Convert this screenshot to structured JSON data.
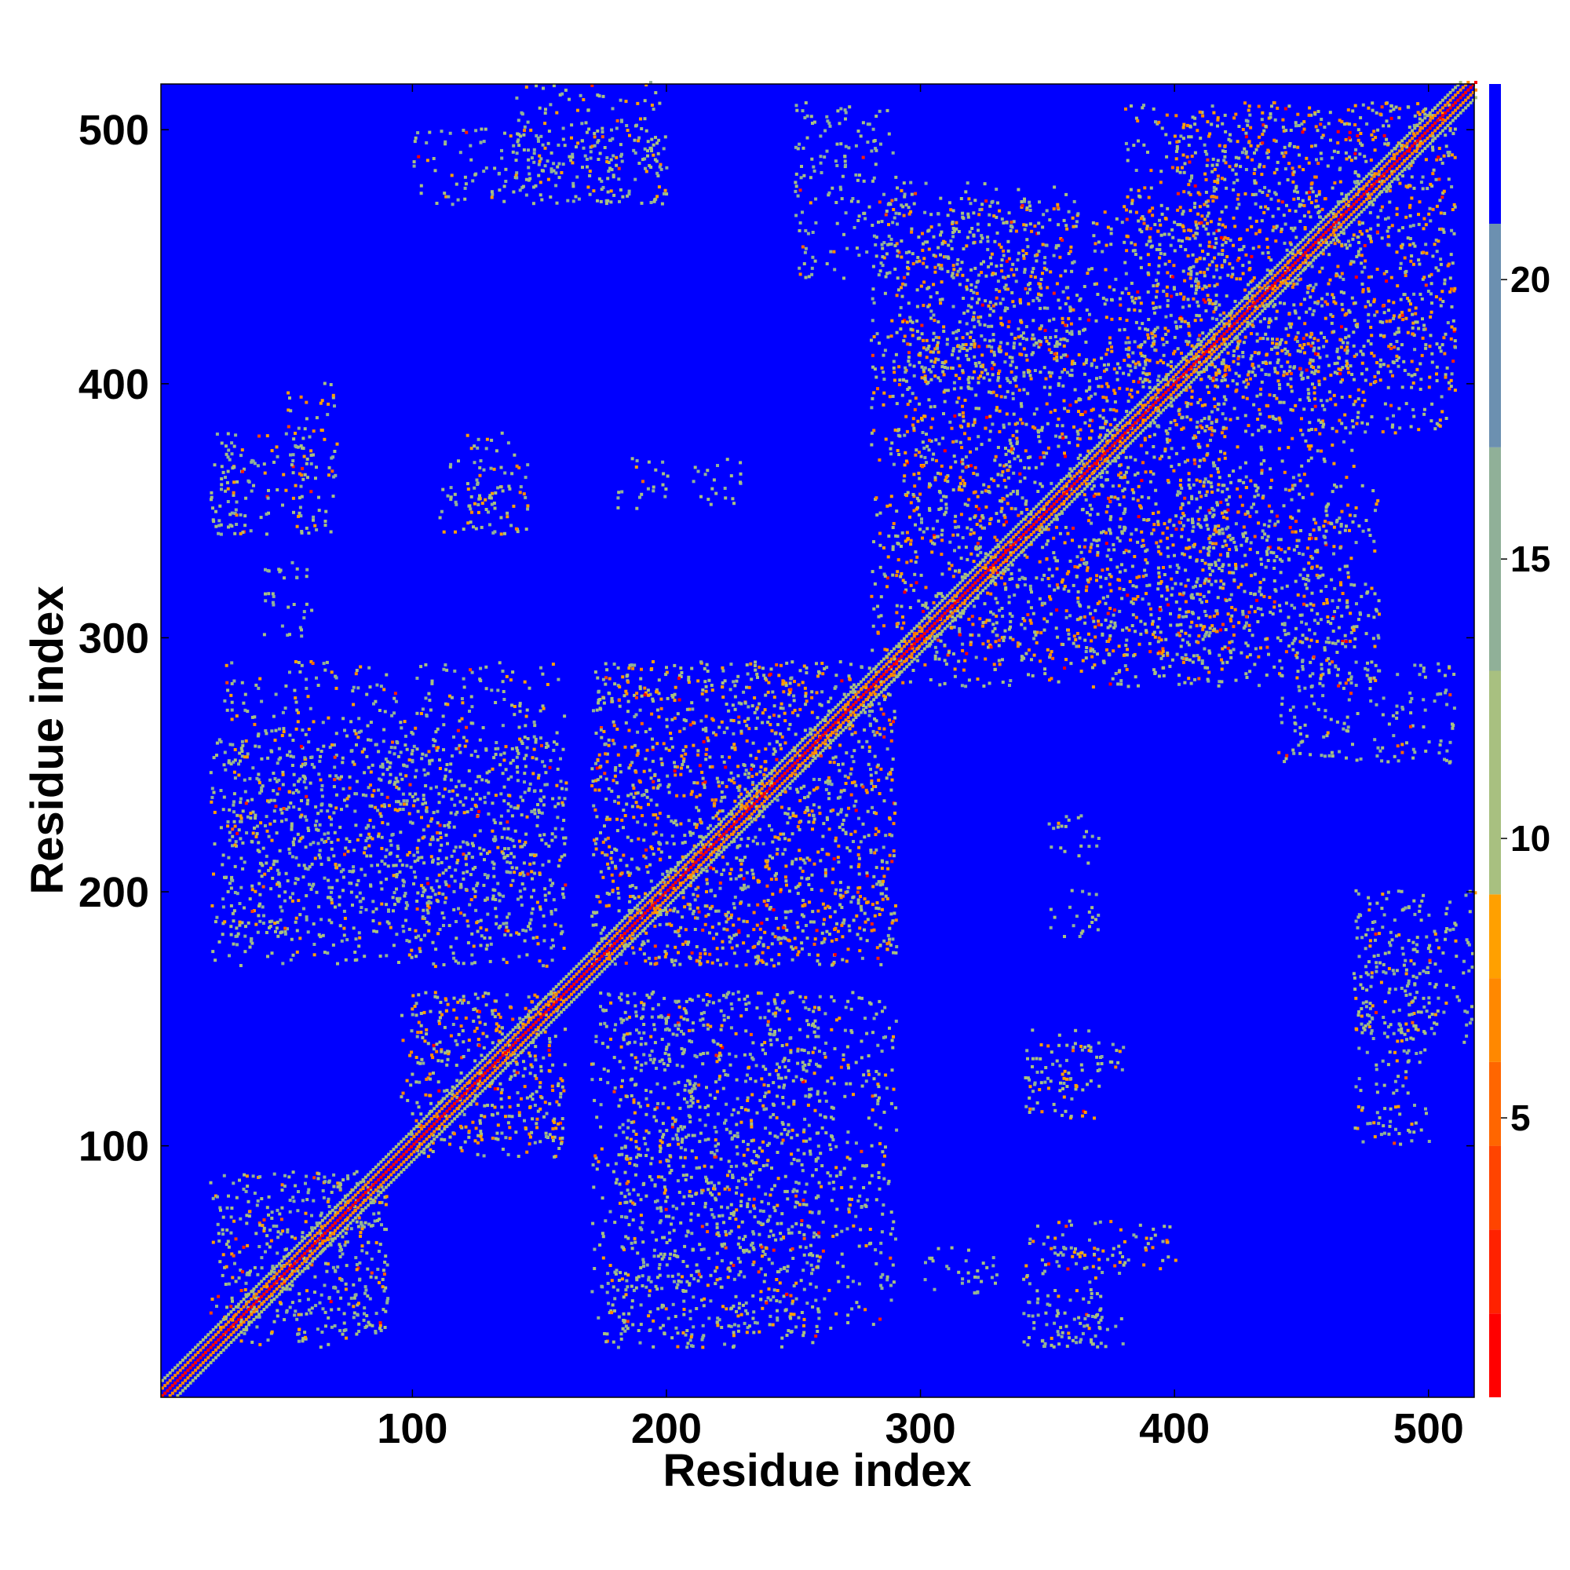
{
  "chart_data": {
    "type": "heatmap",
    "title": "",
    "xlabel": "Residue index",
    "ylabel": "Residue index",
    "xlim": [
      1,
      518
    ],
    "ylim": [
      1,
      518
    ],
    "xticks": [
      100,
      200,
      300,
      400,
      500
    ],
    "yticks": [
      100,
      200,
      300,
      400,
      500
    ],
    "colorbar": {
      "ticks": [
        5,
        10,
        15,
        20
      ],
      "range": [
        0,
        23.5
      ],
      "levels": [
        {
          "from": 0.0,
          "to": 1.5,
          "color": "#ff0000"
        },
        {
          "from": 1.5,
          "to": 3.0,
          "color": "#ff2200"
        },
        {
          "from": 3.0,
          "to": 4.5,
          "color": "#ff4400"
        },
        {
          "from": 4.5,
          "to": 6.0,
          "color": "#ff6600"
        },
        {
          "from": 6.0,
          "to": 7.5,
          "color": "#ff8800"
        },
        {
          "from": 7.5,
          "to": 9.0,
          "color": "#ffa000"
        },
        {
          "from": 9.0,
          "to": 13.0,
          "color": "#a8c080"
        },
        {
          "from": 13.0,
          "to": 17.0,
          "color": "#90b098"
        },
        {
          "from": 17.0,
          "to": 21.0,
          "color": "#6c90b0"
        },
        {
          "from": 21.0,
          "to": 23.5,
          "color": "#0000ff"
        }
      ]
    },
    "background_color": "#0000ff",
    "diagonal_value": 1,
    "contact_regions": [
      {
        "x": [
          1,
          518
        ],
        "y": [
          1,
          518
        ],
        "note": "diagonal band"
      },
      {
        "x": [
          20,
          90
        ],
        "y": [
          25,
          90
        ],
        "value": 12
      },
      {
        "x": [
          100,
          160
        ],
        "y": [
          95,
          160
        ],
        "value": 10
      },
      {
        "x": [
          20,
          160
        ],
        "y": [
          170,
          260
        ],
        "value": 12
      },
      {
        "x": [
          170,
          290
        ],
        "y": [
          170,
          290
        ],
        "value": 10
      },
      {
        "x": [
          180,
          290
        ],
        "y": [
          25,
          160
        ],
        "value": 12
      },
      {
        "x": [
          290,
          420
        ],
        "y": [
          280,
          470
        ],
        "value": 10
      },
      {
        "x": [
          400,
          510
        ],
        "y": [
          380,
          510
        ],
        "value": 10
      },
      {
        "x": [
          400,
          480
        ],
        "y": [
          280,
          360
        ],
        "value": 12
      },
      {
        "x": [
          20,
          40
        ],
        "y": [
          340,
          370
        ],
        "value": 13
      },
      {
        "x": [
          50,
          70
        ],
        "y": [
          340,
          400
        ],
        "value": 11
      },
      {
        "x": [
          110,
          145
        ],
        "y": [
          340,
          370
        ],
        "value": 11
      },
      {
        "x": [
          180,
          200
        ],
        "y": [
          350,
          370
        ],
        "value": 13
      },
      {
        "x": [
          210,
          230
        ],
        "y": [
          350,
          370
        ],
        "value": 13
      },
      {
        "x": [
          300,
          330
        ],
        "y": [
          40,
          60
        ],
        "value": 13
      },
      {
        "x": [
          340,
          380
        ],
        "y": [
          20,
          60
        ],
        "value": 12
      },
      {
        "x": [
          340,
          380
        ],
        "y": [
          120,
          140
        ],
        "value": 12
      },
      {
        "x": [
          470,
          500
        ],
        "y": [
          100,
          200
        ],
        "value": 12
      },
      {
        "x": [
          140,
          200
        ],
        "y": [
          470,
          518
        ],
        "value": 12
      },
      {
        "x": [
          250,
          290
        ],
        "y": [
          440,
          510
        ],
        "value": 13
      }
    ]
  }
}
